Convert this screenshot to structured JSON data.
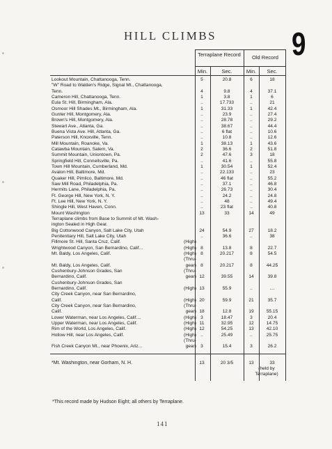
{
  "title": "HILL CLIMBS",
  "section_number": "9",
  "headers": {
    "terraplane": "Terraplane Record",
    "old": "Old Record",
    "min": "Min.",
    "sec": "Sec."
  },
  "rows": [
    {
      "name": "Lookout Mountain, Chattanooga, Tenn.",
      "cond": "",
      "tmin": "5",
      "tsec": "20.8",
      "omin": "6",
      "osec": "18"
    },
    {
      "name": "\"W\" Road to Walden's Ridge, Signal Mt., Chattanooga,",
      "cond": "",
      "tmin": "",
      "tsec": "",
      "omin": "",
      "osec": ""
    },
    {
      "name": "   Tenn.",
      "cond": "",
      "tmin": "4",
      "tsec": "9.8",
      "omin": "4",
      "osec": "37.1"
    },
    {
      "name": "Cameron Hill, Chattanooga, Tenn.",
      "cond": "",
      "tmin": "1",
      "tsec": "3.8",
      "omin": "1",
      "osec": "6"
    },
    {
      "name": "Eula St. Hill, Birmingham, Ala.",
      "cond": "",
      "tmin": "..",
      "tsec": "17.733",
      "omin": "..",
      "osec": "21"
    },
    {
      "name": "Osmoor Hill Shades Mt., Birmingham, Ala.",
      "cond": "",
      "tmin": "1",
      "tsec": "31.33",
      "omin": "1",
      "osec": "42.4"
    },
    {
      "name": "Gunter Hill, Montgomery, Ala.",
      "cond": "",
      "tmin": "..",
      "tsec": "23.9",
      "omin": "..",
      "osec": "27.4"
    },
    {
      "name": "Brown's Hill, Montgomery, Ala.",
      "cond": "",
      "tmin": "..",
      "tsec": "28.78",
      "omin": "..",
      "osec": "29.2"
    },
    {
      "name": "Stewart Ave., Atlanta, Ga.",
      "cond": "",
      "tmin": "..",
      "tsec": "38.67",
      "omin": "..",
      "osec": "44.4"
    },
    {
      "name": "Buena Vista Ave. Hill, Atlanta, Ga.",
      "cond": "",
      "tmin": "..",
      "tsec": "6 flat",
      "omin": "..",
      "osec": "10.6"
    },
    {
      "name": "Paterson Hill, Knoxville, Tenn.",
      "cond": "",
      "tmin": "..",
      "tsec": "10.8",
      "omin": "..",
      "osec": "12.6"
    },
    {
      "name": "Mill Mountain, Roanoke, Va.",
      "cond": "",
      "tmin": "1",
      "tsec": "38.13",
      "omin": "1",
      "osec": "43.6"
    },
    {
      "name": "Catawba Mountain, Salem, Va.",
      "cond": "",
      "tmin": "2",
      "tsec": "36.6",
      "omin": "2",
      "osec": "51.8"
    },
    {
      "name": "Summit Mountain, Uniontown, Pa.",
      "cond": "",
      "tmin": "2",
      "tsec": "47.6",
      "omin": "3",
      "osec": "18"
    },
    {
      "name": "Springfield Hill, Connellsville, Pa.",
      "cond": "",
      "tmin": "..",
      "tsec": "41.6",
      "omin": "..",
      "osec": "55.8"
    },
    {
      "name": "Town Hill Mountain, Cumberland, Md.",
      "cond": "",
      "tmin": "1",
      "tsec": "30.54",
      "omin": "1",
      "osec": "52.4"
    },
    {
      "name": "Avalon Hill, Baltimore, Md.",
      "cond": "",
      "tmin": "..",
      "tsec": "22.133",
      "omin": "..",
      "osec": "23"
    },
    {
      "name": "Quaker Hill, Pimlico, Baltimore, Md.",
      "cond": "",
      "tmin": "..",
      "tsec": "46 flat",
      "omin": "..",
      "osec": "55.2"
    },
    {
      "name": "Saw Mill Road, Philadelphia, Pa.",
      "cond": "",
      "tmin": "..",
      "tsec": "37.1",
      "omin": "..",
      "osec": "46.8"
    },
    {
      "name": "Hermits Lane, Philadelphia, Pa.",
      "cond": "",
      "tmin": "..",
      "tsec": "26.73",
      "omin": "..",
      "osec": "30.4"
    },
    {
      "name": "Ft. George Hill, New York, N. Y.",
      "cond": "",
      "tmin": "..",
      "tsec": "24.2",
      "omin": "..",
      "osec": "24.8"
    },
    {
      "name": "Ft. Lee Hill, New York, N. Y.",
      "cond": "",
      "tmin": "..",
      "tsec": "48",
      "omin": "..",
      "osec": "49.4"
    },
    {
      "name": "Shingle Hill, West Haven, Conn.",
      "cond": "",
      "tmin": "..",
      "tsec": "23 flat",
      "omin": "..",
      "osec": "40.8"
    },
    {
      "name": "Mount Washington",
      "cond": "",
      "tmin": "13",
      "tsec": "33",
      "omin": "14",
      "osec": "49"
    },
    {
      "name": "Terraplane climbs from Base to Summit of Mt. Wash-",
      "cond": "",
      "tmin": "",
      "tsec": "",
      "omin": "",
      "osec": ""
    },
    {
      "name": "   ington Sealed in High Gear.",
      "cond": "",
      "tmin": "",
      "tsec": "",
      "omin": "",
      "osec": ""
    },
    {
      "name": "Big Cottonwood Canyon, Salt Lake City, Utah",
      "cond": "",
      "tmin": "24",
      "tsec": "54.9",
      "omin": "27",
      "osec": "18.2"
    },
    {
      "name": "Penitentiary Hill, Salt Lake City, Utah",
      "cond": "",
      "tmin": "..",
      "tsec": "36.6",
      "omin": "..",
      "osec": "38"
    },
    {
      "name": "Fillmore St. Hill, Santa Cruz, Calif.",
      "cond": "(High)",
      "tmin": "",
      "tsec": "",
      "omin": "",
      "osec": ""
    },
    {
      "name": "Wrightwood Canyon, San Bernardino, Calif...",
      "cond": "(High)",
      "tmin": "8",
      "tsec": "13.8",
      "omin": "8",
      "osec": "22.7"
    },
    {
      "name": "Mt. Baldy, Los Angeles, Calif.",
      "cond": "(High)",
      "tmin": "8",
      "tsec": "20.217",
      "omin": "8",
      "osec": "54.5"
    },
    {
      "name": "",
      "cond": "(Thru-",
      "tmin": "",
      "tsec": "",
      "omin": "",
      "osec": ""
    },
    {
      "name": "Mt. Baldy, Los Angeles, Calif.",
      "cond": "gear)",
      "tmin": "8",
      "tsec": "20.217",
      "omin": "8",
      "osec": "44.25"
    },
    {
      "name": "Cushenbury-Johnson Grades, San",
      "cond": "(Thru-",
      "tmin": "",
      "tsec": "",
      "omin": "",
      "osec": ""
    },
    {
      "name": "   Bernardino, Calif.",
      "cond": "gear)",
      "tmin": "12",
      "tsec": "39.55",
      "omin": "14",
      "osec": "39.8"
    },
    {
      "name": "Cushenbury-Johnson Grades, San",
      "cond": "",
      "tmin": "",
      "tsec": "",
      "omin": "",
      "osec": ""
    },
    {
      "name": "   Bernardino, Calif.",
      "cond": "(High)",
      "tmin": "13",
      "tsec": "55.9",
      "omin": "..",
      "osec": "...."
    },
    {
      "name": "City Creek Canyon, near San Bernardino,",
      "cond": "",
      "tmin": "",
      "tsec": "",
      "omin": "",
      "osec": ""
    },
    {
      "name": "   Calif.",
      "cond": "(High)",
      "tmin": "20",
      "tsec": "59.9",
      "omin": "21",
      "osec": "35.7"
    },
    {
      "name": "City Creek Canyon, near San Bernardino,",
      "cond": "(Thru-",
      "tmin": "",
      "tsec": "",
      "omin": "",
      "osec": ""
    },
    {
      "name": "   Calif.",
      "cond": "gear)",
      "tmin": "18",
      "tsec": "12.8",
      "omin": "19",
      "osec": "55.15"
    },
    {
      "name": "Lower Waterman, near Los Angeles, Calif....",
      "cond": "(High)",
      "tmin": "3",
      "tsec": "18.47",
      "omin": "3",
      "osec": "20.4"
    },
    {
      "name": "Upper Waterman, near Los Angeles, Calif.",
      "cond": "(High)",
      "tmin": "11",
      "tsec": "32.95",
      "omin": "12",
      "osec": "14.75"
    },
    {
      "name": "Rim of the World, Los Angeles, Calif.",
      "cond": "(High)",
      "tmin": "12",
      "tsec": "54.25",
      "omin": "13",
      "osec": "42.10"
    },
    {
      "name": "Hollow Hill, near Los Angeles, Calif.",
      "cond": "(High)",
      "tmin": "..",
      "tsec": "25.49",
      "omin": "..",
      "osec": "25.75"
    },
    {
      "name": "",
      "cond": "(Thru-",
      "tmin": "",
      "tsec": "",
      "omin": "",
      "osec": ""
    },
    {
      "name": "Fish Creek Canyon Mt., near Phoenix, Ariz...",
      "cond": "gear)",
      "tmin": "3",
      "tsec": "15.4",
      "omin": "3",
      "osec": "26.2"
    }
  ],
  "final_row": {
    "name": "*Mt. Washington, near Gorham, N. H.",
    "tmin": "13",
    "tsec": "20 3/5",
    "omin": "13",
    "osec": "33",
    "note1": "(held by",
    "note2": "Terraplane)"
  },
  "footnote": "*This record made by Hudson Eight; all others by Terraplane.",
  "page_number": "141"
}
